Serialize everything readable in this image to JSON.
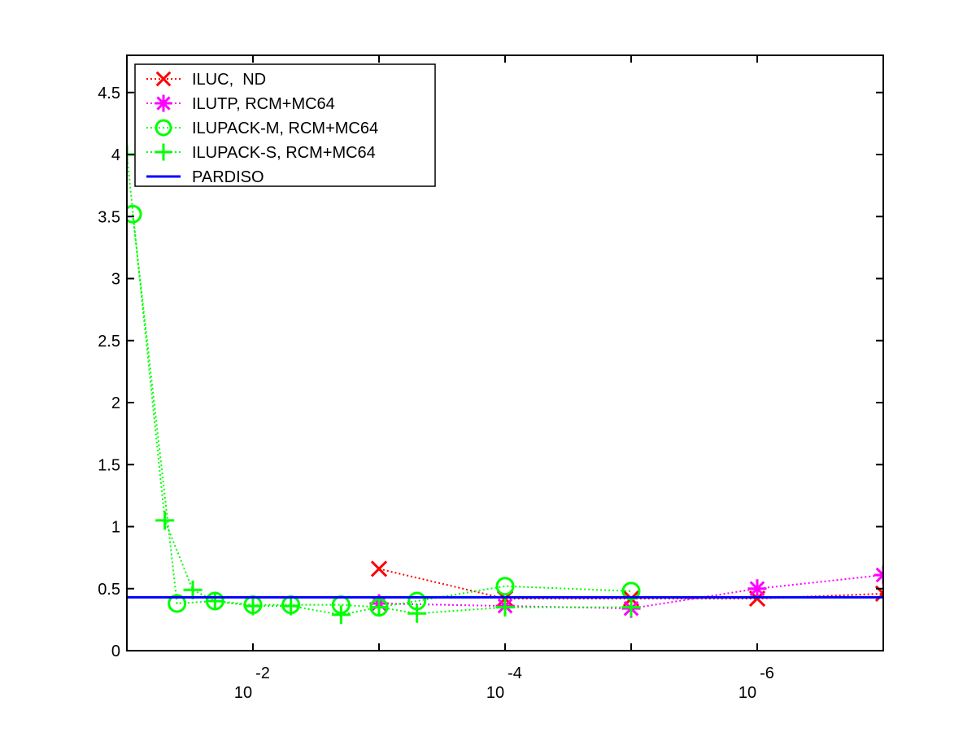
{
  "chart_data": {
    "type": "line",
    "title": "",
    "xlabel": "",
    "ylabel": "",
    "x_scale": "log",
    "x_reversed": true,
    "xlim": [
      0.1,
      1e-07
    ],
    "ylim": [
      0,
      4.8
    ],
    "grid": false,
    "legend_position": "top-left",
    "x_ticks": [
      {
        "value": 0.01,
        "base": "10",
        "exponent": "-2"
      },
      {
        "value": 0.0001,
        "base": "10",
        "exponent": "-4"
      },
      {
        "value": 1e-06,
        "base": "10",
        "exponent": "-6"
      }
    ],
    "y_ticks": [
      {
        "value": 0,
        "label": "0"
      },
      {
        "value": 0.5,
        "label": "0.5"
      },
      {
        "value": 1,
        "label": "1"
      },
      {
        "value": 1.5,
        "label": "1.5"
      },
      {
        "value": 2,
        "label": "2"
      },
      {
        "value": 2.5,
        "label": "2.5"
      },
      {
        "value": 3,
        "label": "3"
      },
      {
        "value": 3.5,
        "label": "3.5"
      },
      {
        "value": 4,
        "label": "4"
      },
      {
        "value": 4.5,
        "label": "4.5"
      }
    ],
    "series": [
      {
        "name": "ILUC,  ND",
        "color": "#ff0000",
        "marker": "x",
        "line": "dotted",
        "points": [
          [
            0.001,
            0.66
          ],
          [
            0.0001,
            0.42
          ],
          [
            1e-05,
            0.42
          ],
          [
            1e-06,
            0.42
          ],
          [
            1e-07,
            0.46
          ]
        ]
      },
      {
        "name": "ILUTP, RCM+MC64",
        "color": "#ff00ff",
        "marker": "asterisk",
        "line": "dotted",
        "points": [
          [
            0.001,
            0.38
          ],
          [
            0.0001,
            0.36
          ],
          [
            1e-05,
            0.34
          ],
          [
            1e-06,
            0.5
          ],
          [
            1e-07,
            0.61
          ]
        ]
      },
      {
        "name": "ILUPACK-M, RCM+MC64",
        "color": "#00ff00",
        "marker": "circle",
        "line": "dotted",
        "points": [
          [
            0.09,
            3.52
          ],
          [
            0.04,
            0.38
          ],
          [
            0.02,
            0.4
          ],
          [
            0.01,
            0.37
          ],
          [
            0.005,
            0.37
          ],
          [
            0.002,
            0.37
          ],
          [
            0.001,
            0.35
          ],
          [
            0.0005,
            0.4
          ],
          [
            0.0001,
            0.52
          ],
          [
            1e-05,
            0.48
          ]
        ]
      },
      {
        "name": "ILUPACK-S, RCM+MC64",
        "color": "#00ff00",
        "marker": "plus",
        "line": "dotted",
        "points": [
          [
            0.1,
            4.0
          ],
          [
            0.05,
            1.05
          ],
          [
            0.03,
            0.49
          ],
          [
            0.02,
            0.4
          ],
          [
            0.01,
            0.36
          ],
          [
            0.005,
            0.36
          ],
          [
            0.002,
            0.29
          ],
          [
            0.001,
            0.35
          ],
          [
            0.0005,
            0.3
          ],
          [
            0.0001,
            0.35
          ],
          [
            1e-05,
            0.35
          ]
        ]
      },
      {
        "name": "PARDISO",
        "color": "#0000ff",
        "marker": "none",
        "line": "solid",
        "points": [
          [
            0.1,
            0.43
          ],
          [
            1e-07,
            0.43
          ]
        ]
      }
    ]
  }
}
